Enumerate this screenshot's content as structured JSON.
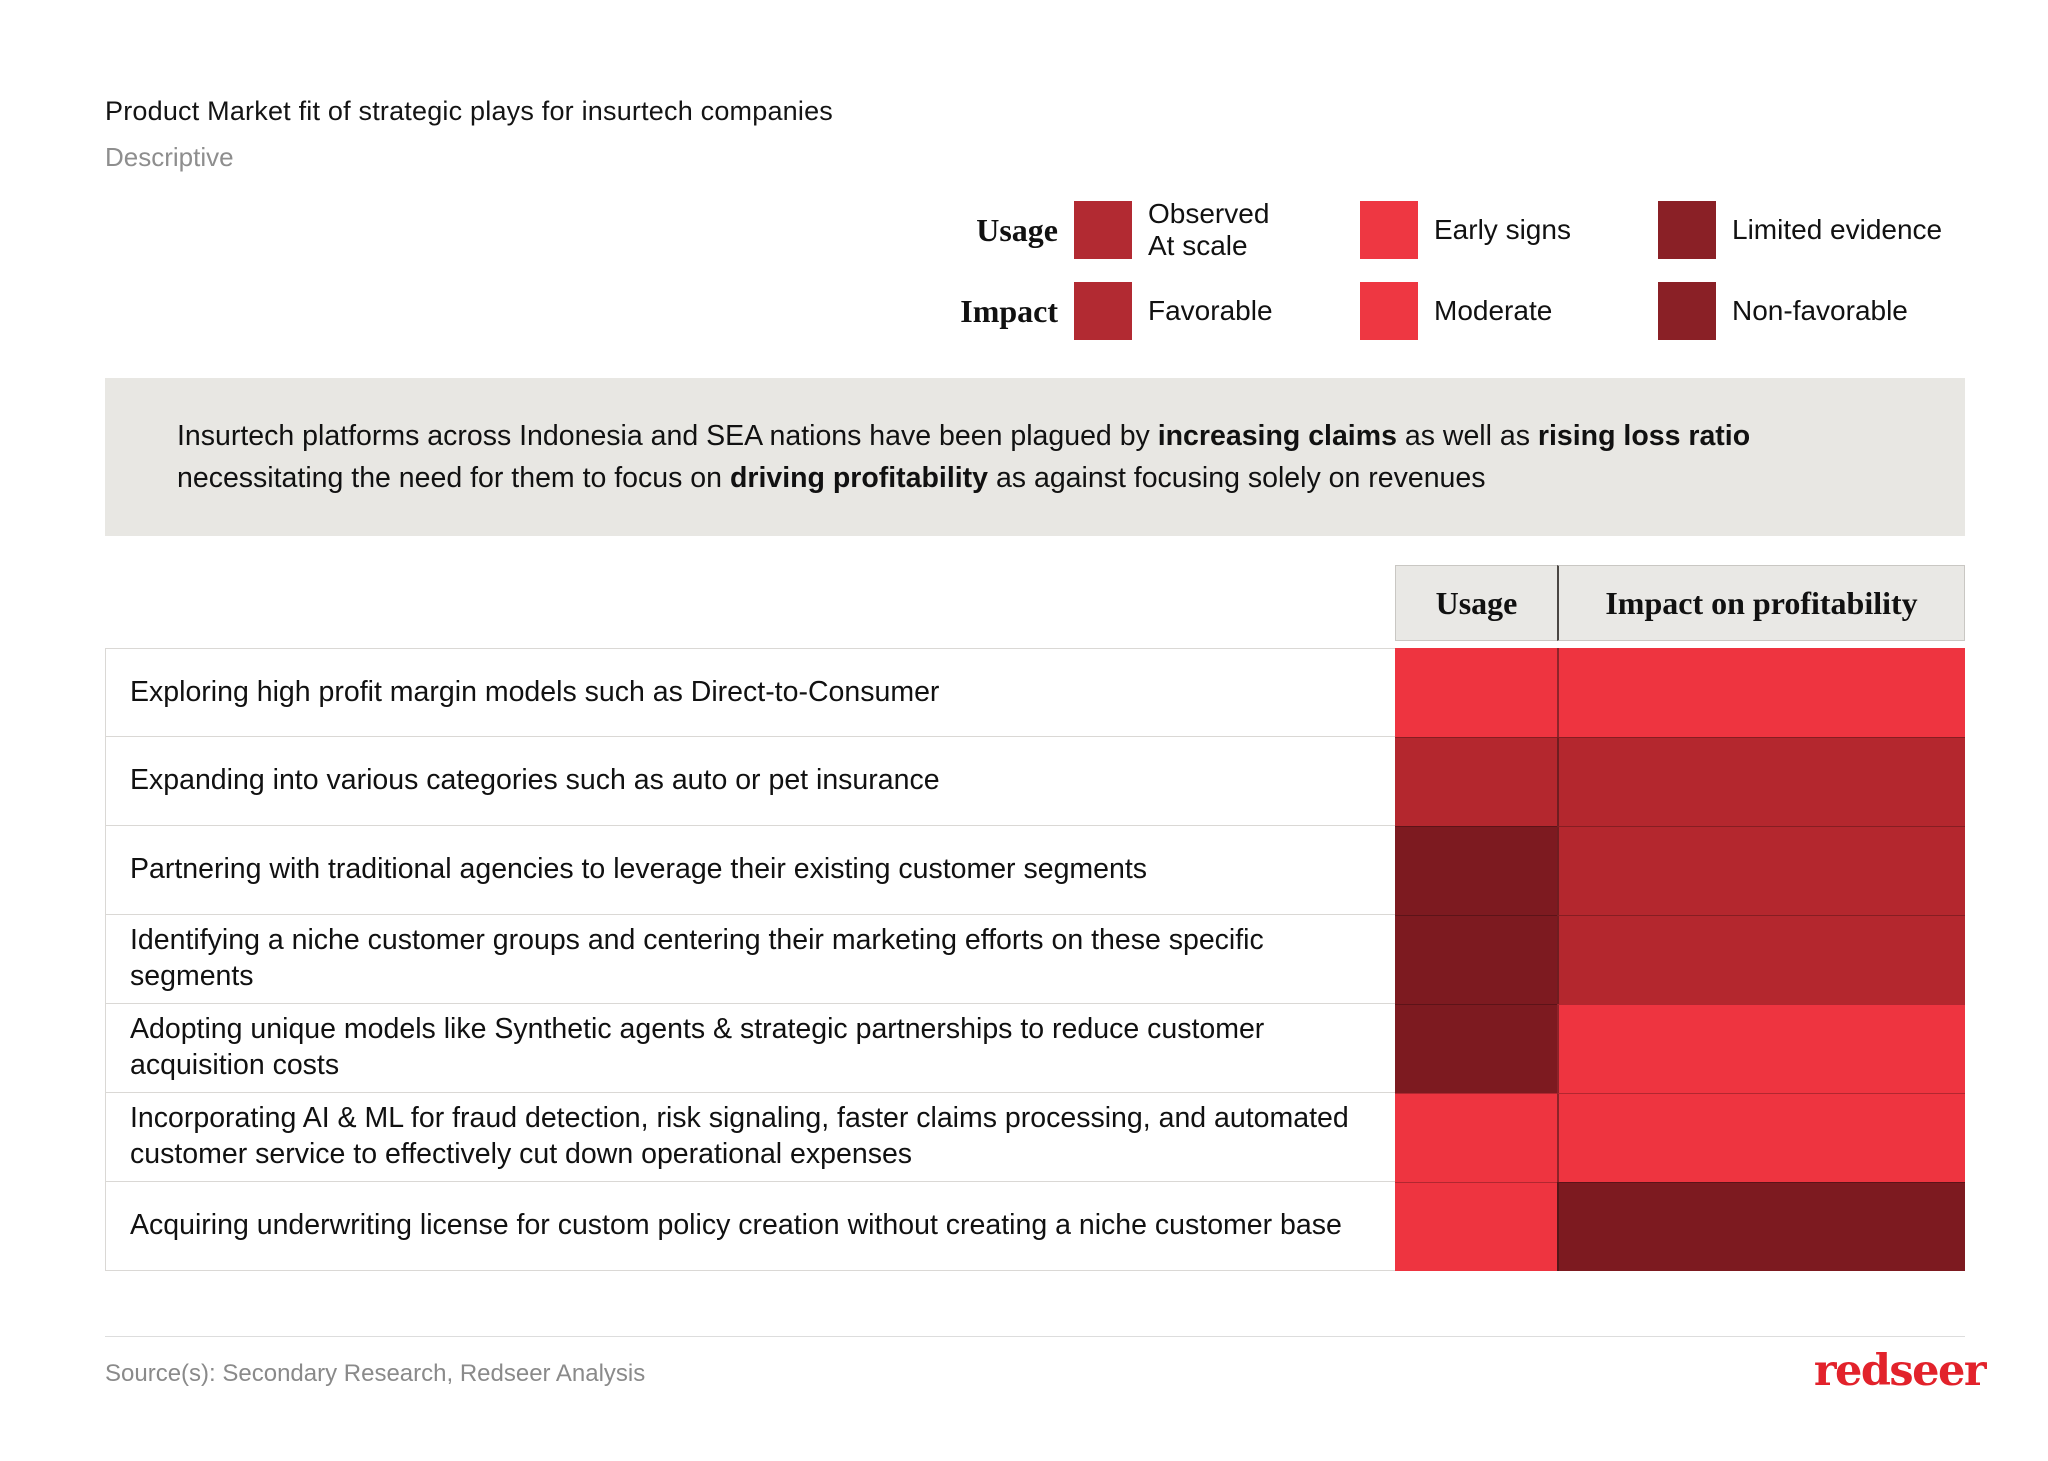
{
  "header": {
    "title": "Product Market fit of strategic plays for insurtech companies",
    "subtitle": "Descriptive"
  },
  "legend": {
    "rows": [
      {
        "label": "Usage",
        "items": [
          {
            "label": "Observed\nAt scale",
            "level": "observed_at_scale"
          },
          {
            "label": "Early signs",
            "level": "early_signs"
          },
          {
            "label": "Limited evidence",
            "level": "limited_evidence"
          }
        ]
      },
      {
        "label": "Impact",
        "items": [
          {
            "label": "Favorable",
            "level": "favorable"
          },
          {
            "label": "Moderate",
            "level": "moderate"
          },
          {
            "label": "Non-favorable",
            "level": "non_favorable"
          }
        ]
      }
    ]
  },
  "callout": {
    "segments": [
      {
        "text": "Insurtech platforms across Indonesia and SEA nations have been plagued by ",
        "bold": false
      },
      {
        "text": "increasing claims",
        "bold": true
      },
      {
        "text": " as well as ",
        "bold": false
      },
      {
        "text": "rising loss ratio",
        "bold": true
      },
      {
        "text": " necessitating the need for them to focus on ",
        "bold": false
      },
      {
        "text": "driving profitability",
        "bold": true
      },
      {
        "text": " as against focusing solely on revenues",
        "bold": false
      }
    ]
  },
  "chart_data": {
    "type": "heatmap",
    "columns": [
      "Usage",
      "Impact on profitability"
    ],
    "palette": {
      "observed_at_scale": "#b4272e",
      "favorable": "#b4272e",
      "early_signs": "#ee3440",
      "moderate": "#ee3440",
      "limited_evidence": "#7d1a20",
      "non_favorable": "#7d1a20"
    },
    "legend_palette": {
      "observed_at_scale": "#b22a32",
      "favorable": "#b22a32",
      "early_signs": "#ee3742",
      "moderate": "#ee3742",
      "limited_evidence": "#8a2026",
      "non_favorable": "#8a2026"
    },
    "rows": [
      {
        "strategy": "Exploring high profit margin models such as Direct-to-Consumer",
        "usage": "early_signs",
        "impact": "moderate"
      },
      {
        "strategy": "Expanding into various categories such as auto or pet insurance",
        "usage": "observed_at_scale",
        "impact": "favorable"
      },
      {
        "strategy": "Partnering with traditional agencies to leverage their existing customer segments",
        "usage": "limited_evidence",
        "impact": "favorable"
      },
      {
        "strategy": "Identifying a niche customer groups and centering their marketing efforts on these specific segments",
        "usage": "limited_evidence",
        "impact": "favorable"
      },
      {
        "strategy": "Adopting unique models like Synthetic agents & strategic partnerships to reduce customer acquisition costs",
        "usage": "limited_evidence",
        "impact": "moderate"
      },
      {
        "strategy": "Incorporating AI & ML for fraud detection, risk signaling, faster claims processing, and automated customer service to effectively cut down operational expenses",
        "usage": "early_signs",
        "impact": "moderate"
      },
      {
        "strategy": "Acquiring underwriting license for custom policy creation without creating a niche customer base",
        "usage": "early_signs",
        "impact": "non_favorable"
      }
    ]
  },
  "table_header": {
    "usage": "Usage",
    "impact": "Impact on profitability"
  },
  "footer": {
    "source": "Source(s): Secondary Research, Redseer Analysis",
    "logo": "redseer"
  }
}
